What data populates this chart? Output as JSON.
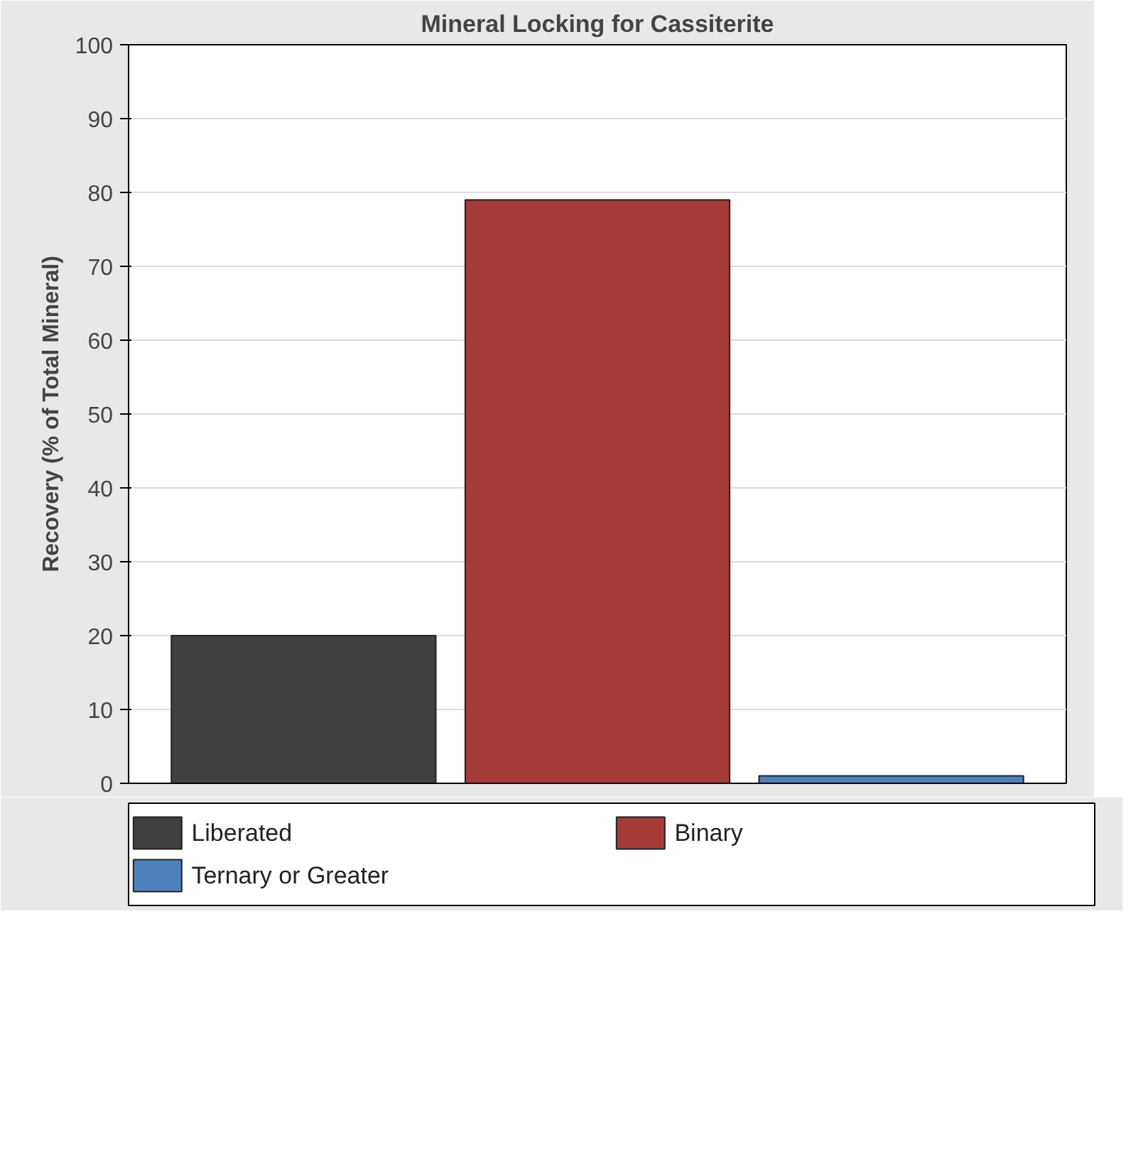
{
  "chart_data": {
    "type": "bar",
    "title": "Mineral Locking for Cassiterite",
    "ylabel": "Recovery (% of Total Mineral)",
    "categories": [
      null
    ],
    "series": [
      {
        "name": "Liberated",
        "color": "#404040",
        "values": [
          20
        ]
      },
      {
        "name": "Binary",
        "color": "#a63c38",
        "values": [
          79
        ]
      },
      {
        "name": "Ternary or Greater",
        "color": "#4f81bd",
        "values": [
          1
        ]
      }
    ],
    "ylim": [
      0,
      100
    ],
    "yticks": [
      0,
      10,
      20,
      30,
      40,
      50,
      60,
      70,
      80,
      90,
      100
    ],
    "grid": "y",
    "legend": "bottom",
    "tick_labels": "y"
  }
}
